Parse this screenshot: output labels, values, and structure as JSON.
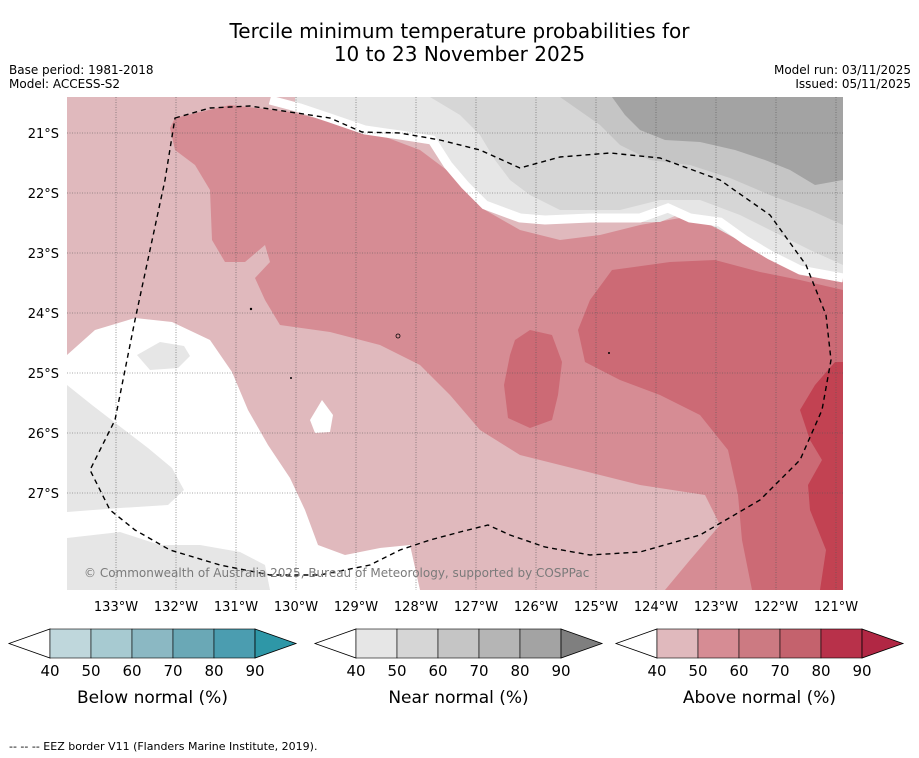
{
  "title": {
    "line1": "Tercile minimum temperature probabilities for",
    "line2": "10 to 23 November 2025"
  },
  "meta": {
    "base_period": "Base period: 1981-2018",
    "model": "Model: ACCESS-S2",
    "model_run": "Model run: 03/11/2025",
    "issued": "Issued: 05/11/2025"
  },
  "map": {
    "lat_labels": [
      "21°S",
      "22°S",
      "23°S",
      "24°S",
      "25°S",
      "26°S",
      "27°S"
    ],
    "lon_labels": [
      "133°W",
      "132°W",
      "131°W",
      "130°W",
      "129°W",
      "128°W",
      "127°W",
      "126°W",
      "125°W",
      "124°W",
      "123°W",
      "122°W",
      "121°W"
    ],
    "copyright": "© Commonwealth of Australia 2025, Bureau of Meteorology, supported by COSPPac"
  },
  "legends": [
    {
      "label": "Below normal (%)",
      "ticks": [
        "40",
        "50",
        "60",
        "70",
        "80",
        "90"
      ],
      "colors": [
        "#ffffff",
        "#bfd7dc",
        "#a7cad1",
        "#8bb8c3",
        "#6aa8b6",
        "#4b9db0",
        "#2e97a7"
      ]
    },
    {
      "label": "Near normal (%)",
      "ticks": [
        "40",
        "50",
        "60",
        "70",
        "80",
        "90"
      ],
      "colors": [
        "#ffffff",
        "#e6e6e6",
        "#d6d6d6",
        "#c5c5c5",
        "#b5b5b5",
        "#a3a3a3",
        "#7f7f7f"
      ]
    },
    {
      "label": "Above normal (%)",
      "ticks": [
        "40",
        "50",
        "60",
        "70",
        "80",
        "90"
      ],
      "colors": [
        "#ffffff",
        "#e0b9bd",
        "#d68c94",
        "#cc7a82",
        "#c4626d",
        "#b8314a",
        "#b12744"
      ]
    }
  ],
  "footnote": "-- -- -- EEZ border V11 (Flanders Marine Institute, 2019).",
  "colors": {
    "white": "#ffffff",
    "near40": "#e6e6e6",
    "near50": "#d6d6d6",
    "near60": "#c5c5c5",
    "near70": "#a3a3a3",
    "above40": "#e0b9bd",
    "above50": "#d68c94",
    "above60": "#cc6a75",
    "above70": "#c24252"
  }
}
